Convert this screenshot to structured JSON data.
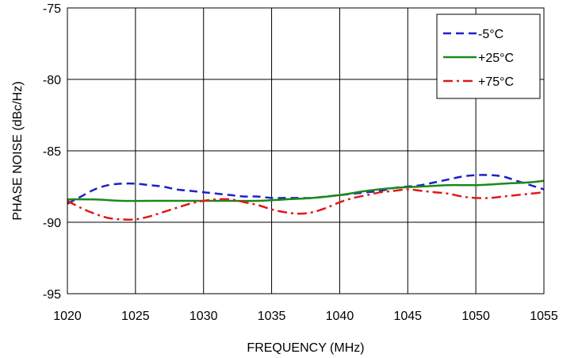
{
  "chart_data": {
    "type": "line",
    "title": "",
    "xlabel": "FREQUENCY (MHz)",
    "ylabel": "PHASE NOISE  (dBc/Hz)",
    "xlim": [
      1020,
      1055
    ],
    "ylim": [
      -95,
      -75
    ],
    "x_ticks": [
      1020,
      1025,
      1030,
      1035,
      1040,
      1045,
      1050,
      1055
    ],
    "y_ticks": [
      -75,
      -80,
      -85,
      -90,
      -95
    ],
    "x_tick_labels": [
      "1020",
      "1025",
      "1030",
      "1035",
      "1040",
      "1045",
      "1050",
      "1055"
    ],
    "y_tick_labels": [
      "-75",
      "-80",
      "-85",
      "-90",
      "-95"
    ],
    "grid": true,
    "legend_position": "top-right",
    "series": [
      {
        "name": "-5°C",
        "color": "#1f1fcc",
        "dash": "dashed",
        "points": [
          [
            1020,
            -88.7
          ],
          [
            1021,
            -88.2
          ],
          [
            1022,
            -87.7
          ],
          [
            1023,
            -87.4
          ],
          [
            1024,
            -87.3
          ],
          [
            1025,
            -87.3
          ],
          [
            1026,
            -87.4
          ],
          [
            1027,
            -87.5
          ],
          [
            1028,
            -87.7
          ],
          [
            1029,
            -87.8
          ],
          [
            1030,
            -87.9
          ],
          [
            1031,
            -88.0
          ],
          [
            1032,
            -88.1
          ],
          [
            1033,
            -88.2
          ],
          [
            1034,
            -88.2
          ],
          [
            1035,
            -88.3
          ],
          [
            1036,
            -88.3
          ],
          [
            1037,
            -88.3
          ],
          [
            1038,
            -88.3
          ],
          [
            1039,
            -88.2
          ],
          [
            1040,
            -88.1
          ],
          [
            1041,
            -88.0
          ],
          [
            1042,
            -87.9
          ],
          [
            1043,
            -87.8
          ],
          [
            1044,
            -87.6
          ],
          [
            1045,
            -87.5
          ],
          [
            1046,
            -87.4
          ],
          [
            1047,
            -87.2
          ],
          [
            1048,
            -87.0
          ],
          [
            1049,
            -86.8
          ],
          [
            1050,
            -86.7
          ],
          [
            1051,
            -86.7
          ],
          [
            1052,
            -86.8
          ],
          [
            1053,
            -87.1
          ],
          [
            1054,
            -87.4
          ],
          [
            1055,
            -87.7
          ]
        ]
      },
      {
        "name": "+25°C",
        "color": "#1a8a1a",
        "dash": "solid",
        "points": [
          [
            1020,
            -88.4
          ],
          [
            1022,
            -88.4
          ],
          [
            1024,
            -88.5
          ],
          [
            1026,
            -88.5
          ],
          [
            1028,
            -88.5
          ],
          [
            1030,
            -88.5
          ],
          [
            1032,
            -88.5
          ],
          [
            1034,
            -88.5
          ],
          [
            1036,
            -88.4
          ],
          [
            1038,
            -88.3
          ],
          [
            1040,
            -88.1
          ],
          [
            1042,
            -87.8
          ],
          [
            1044,
            -87.6
          ],
          [
            1046,
            -87.5
          ],
          [
            1048,
            -87.4
          ],
          [
            1050,
            -87.4
          ],
          [
            1052,
            -87.3
          ],
          [
            1054,
            -87.2
          ],
          [
            1055,
            -87.1
          ]
        ]
      },
      {
        "name": "+75°C",
        "color": "#e01a1a",
        "dash": "dashdot",
        "points": [
          [
            1020,
            -88.5
          ],
          [
            1021,
            -89.0
          ],
          [
            1022,
            -89.4
          ],
          [
            1023,
            -89.7
          ],
          [
            1024,
            -89.8
          ],
          [
            1025,
            -89.8
          ],
          [
            1026,
            -89.6
          ],
          [
            1027,
            -89.3
          ],
          [
            1028,
            -89.0
          ],
          [
            1029,
            -88.7
          ],
          [
            1030,
            -88.5
          ],
          [
            1031,
            -88.4
          ],
          [
            1032,
            -88.4
          ],
          [
            1033,
            -88.6
          ],
          [
            1034,
            -88.8
          ],
          [
            1035,
            -89.1
          ],
          [
            1036,
            -89.3
          ],
          [
            1037,
            -89.4
          ],
          [
            1038,
            -89.3
          ],
          [
            1039,
            -89.0
          ],
          [
            1040,
            -88.6
          ],
          [
            1041,
            -88.3
          ],
          [
            1042,
            -88.1
          ],
          [
            1043,
            -87.9
          ],
          [
            1044,
            -87.8
          ],
          [
            1045,
            -87.7
          ],
          [
            1046,
            -87.8
          ],
          [
            1047,
            -87.9
          ],
          [
            1048,
            -88.0
          ],
          [
            1049,
            -88.2
          ],
          [
            1050,
            -88.3
          ],
          [
            1051,
            -88.3
          ],
          [
            1052,
            -88.2
          ],
          [
            1053,
            -88.1
          ],
          [
            1054,
            -88.0
          ],
          [
            1055,
            -87.9
          ]
        ]
      }
    ]
  }
}
